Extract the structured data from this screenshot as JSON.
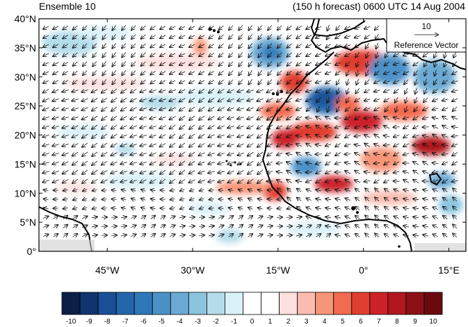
{
  "title_left": "Ensemble 10",
  "title_right": "(150 h forecast) 0600 UTC 14 Aug 2004",
  "lat_labels": [
    "40°N",
    "35°N",
    "30°N",
    "25°N",
    "20°N",
    "15°N",
    "10°N",
    "5°N",
    "0°"
  ],
  "lon_labels": [
    "45°W",
    "30°W",
    "15°W",
    "0°",
    "15°E"
  ],
  "reference_vector": {
    "magnitude": "10",
    "label": "Reference Vector"
  },
  "colorbar": {
    "labels": [
      "-10",
      "-9",
      "-8",
      "-7",
      "-6",
      "-5",
      "-4",
      "-3",
      "-2",
      "-1",
      "0",
      "1",
      "2",
      "3",
      "4",
      "5",
      "6",
      "7",
      "8",
      "9",
      "10"
    ],
    "colors": [
      "#0b1e45",
      "#0f3470",
      "#1a4f95",
      "#2466aa",
      "#2e78b8",
      "#4b91c7",
      "#6aa9d3",
      "#8cc4df",
      "#b4dcea",
      "#daf1f8",
      "#ffffff",
      "#ffffff",
      "#fde0df",
      "#fbbcb0",
      "#f89478",
      "#f26a4f",
      "#e03e2e",
      "#cb2329",
      "#b1171e",
      "#8d1017",
      "#6a0a0f"
    ]
  },
  "map_extent": {
    "lon_min": -57,
    "lon_max": 18,
    "lat_min": 0,
    "lat_max": 40
  }
}
